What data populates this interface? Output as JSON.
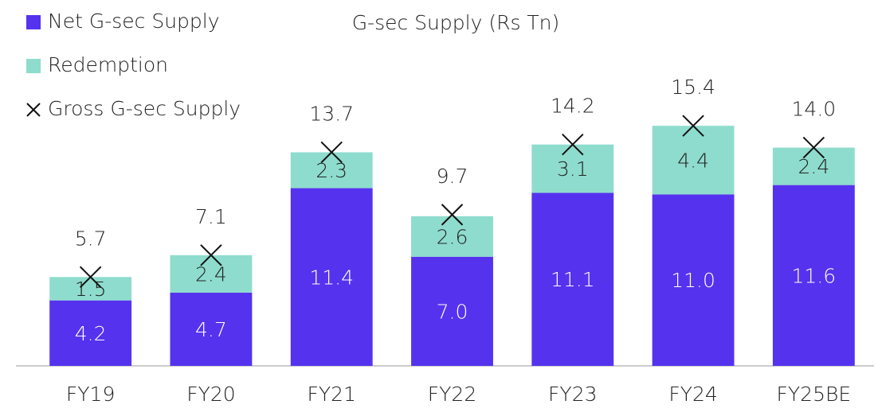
{
  "chart_data": {
    "type": "bar",
    "stacked": true,
    "title": "G-sec Supply (Rs Tn)",
    "categories": [
      "FY19",
      "FY20",
      "FY21",
      "FY22",
      "FY23",
      "FY24",
      "FY25BE"
    ],
    "series": [
      {
        "name": "Net G-sec Supply",
        "type": "bar",
        "color": "#5533ee",
        "values": [
          4.2,
          4.7,
          11.4,
          7.0,
          11.1,
          11.0,
          11.6
        ],
        "value_labels": [
          "4.2",
          "4.7",
          "11.4",
          "7.0",
          "11.1",
          "11.0",
          "11.6"
        ]
      },
      {
        "name": "Redemption",
        "type": "bar",
        "color": "#8edccd",
        "values": [
          1.5,
          2.4,
          2.3,
          2.6,
          3.1,
          4.4,
          2.4
        ],
        "value_labels": [
          "1.5",
          "2.4",
          "2.3",
          "2.6",
          "3.1",
          "4.4",
          "2.4"
        ]
      },
      {
        "name": "Gross G-sec Supply",
        "type": "scatter",
        "color": "#111111",
        "values": [
          5.7,
          7.1,
          13.7,
          9.7,
          14.2,
          15.4,
          14.0
        ],
        "value_labels": [
          "5.7",
          "7.1",
          "13.7",
          "9.7",
          "14.2",
          "15.4",
          "14.0"
        ]
      }
    ],
    "ylim": [
      0,
      20
    ],
    "legend": "top-left"
  }
}
